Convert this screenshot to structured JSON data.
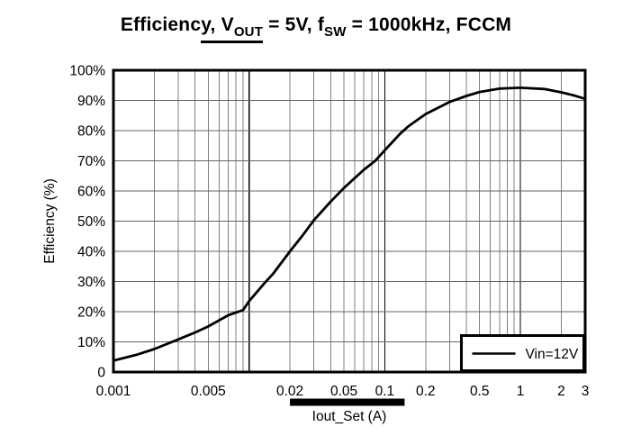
{
  "title": {
    "text": "Efficiency, VOUT = 5V, fSW = 1000kHz, FCCM",
    "segments": [
      {
        "text": "Efficienc",
        "sub": false,
        "underline": false
      },
      {
        "text": "y, V",
        "sub": false,
        "underline": true
      },
      {
        "text": "OUT",
        "sub": true,
        "underline": true
      },
      {
        "text": " = 5V, f",
        "sub": false,
        "underline": false
      },
      {
        "text": "SW",
        "sub": true,
        "underline": false
      },
      {
        "text": " = 1000kHz, FCCM",
        "sub": false,
        "underline": false
      }
    ]
  },
  "chart_data": {
    "type": "line",
    "title": "Efficiency, VOUT = 5V, fSW = 1000kHz, FCCM",
    "x_scale": "log",
    "xlabel": "Iout_Set (A)",
    "ylabel": "Efficiency (%)",
    "xlim": [
      0.001,
      3
    ],
    "ylim": [
      0,
      100
    ],
    "grid": true,
    "x_tick_labels": [
      {
        "v": 0.001,
        "label": "0.001"
      },
      {
        "v": 0.005,
        "label": "0.005"
      },
      {
        "v": 0.02,
        "label": "0.02"
      },
      {
        "v": 0.05,
        "label": "0.05"
      },
      {
        "v": 0.1,
        "label": "0.1"
      },
      {
        "v": 0.2,
        "label": "0.2"
      },
      {
        "v": 0.5,
        "label": "0.5"
      },
      {
        "v": 1,
        "label": "1"
      },
      {
        "v": 2,
        "label": "2"
      },
      {
        "v": 3,
        "label": "3"
      }
    ],
    "y_tick_labels": [
      {
        "v": 0,
        "label": "0"
      },
      {
        "v": 10,
        "label": "10%"
      },
      {
        "v": 20,
        "label": "20%"
      },
      {
        "v": 30,
        "label": "30%"
      },
      {
        "v": 40,
        "label": "40%"
      },
      {
        "v": 50,
        "label": "50%"
      },
      {
        "v": 60,
        "label": "60%"
      },
      {
        "v": 70,
        "label": "70%"
      },
      {
        "v": 80,
        "label": "80%"
      },
      {
        "v": 90,
        "label": "90%"
      },
      {
        "v": 100,
        "label": "100%"
      }
    ],
    "series": [
      {
        "name": "Vin=12V",
        "color": "#000000",
        "points": [
          [
            0.001,
            3.8
          ],
          [
            0.0015,
            5.8
          ],
          [
            0.002,
            7.6
          ],
          [
            0.003,
            10.8
          ],
          [
            0.004,
            13.1
          ],
          [
            0.005,
            15.1
          ],
          [
            0.007,
            18.8
          ],
          [
            0.009,
            20.5
          ],
          [
            0.01,
            23.5
          ],
          [
            0.013,
            29.5
          ],
          [
            0.015,
            32.5
          ],
          [
            0.02,
            40
          ],
          [
            0.025,
            45.5
          ],
          [
            0.03,
            50.3
          ],
          [
            0.04,
            56.5
          ],
          [
            0.05,
            61
          ],
          [
            0.07,
            67
          ],
          [
            0.085,
            70
          ],
          [
            0.1,
            73.5
          ],
          [
            0.13,
            79
          ],
          [
            0.15,
            81.5
          ],
          [
            0.2,
            85.5
          ],
          [
            0.3,
            89.5
          ],
          [
            0.4,
            91.5
          ],
          [
            0.5,
            92.8
          ],
          [
            0.7,
            93.9
          ],
          [
            1,
            94.2
          ],
          [
            1.5,
            93.8
          ],
          [
            2,
            92.7
          ],
          [
            2.5,
            91.6
          ],
          [
            3,
            90.5
          ]
        ]
      }
    ],
    "legend": {
      "position": "bottom-right",
      "entries": [
        {
          "label": "Vin=12V",
          "color": "#000000"
        }
      ]
    },
    "x_axis_highlight": {
      "from": 0.02,
      "to": 0.14,
      "color": "#000000"
    }
  },
  "colors": {
    "background": "#ffffff",
    "axis": "#000000",
    "grid_minor": "#808080",
    "grid_decade": "#000000",
    "grid_horizontal": "#666666",
    "curve": "#000000",
    "text": "#000000"
  }
}
